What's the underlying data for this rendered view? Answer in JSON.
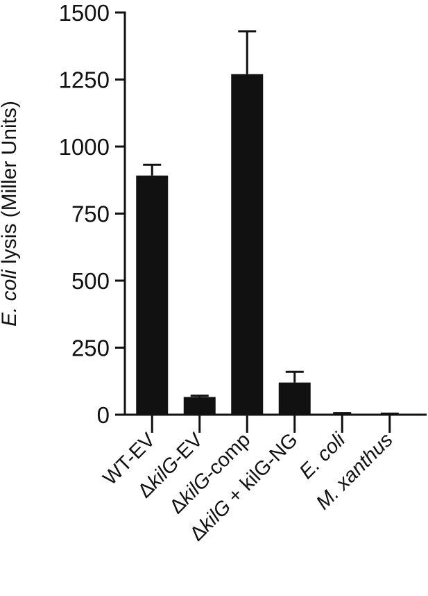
{
  "chart_data": {
    "type": "bar",
    "ylabel": "",
    "ylabel_parts": [
      {
        "text": "E. coli",
        "italic": true
      },
      {
        "text": " lysis (Miller Units)",
        "italic": false
      }
    ],
    "ylim": [
      0,
      1500
    ],
    "yticks": [
      0,
      250,
      500,
      750,
      1000,
      1250,
      1500
    ],
    "ytick_labels": [
      "0",
      "250",
      "500",
      "750",
      "1000",
      "1250",
      "1500"
    ],
    "categories": [
      "WT-EV",
      "ΔkilG-EV",
      "ΔkilG-comp",
      "ΔkilG + kilG-NG",
      "E. coli",
      "M. xanthus"
    ],
    "category_label_parts": [
      [
        {
          "text": "WT-EV",
          "italic": false
        }
      ],
      [
        {
          "text": "Δ",
          "italic": false
        },
        {
          "text": "kilG",
          "italic": true
        },
        {
          "text": "-EV",
          "italic": false
        }
      ],
      [
        {
          "text": "Δ",
          "italic": false
        },
        {
          "text": "kilG",
          "italic": true
        },
        {
          "text": "-comp",
          "italic": false
        }
      ],
      [
        {
          "text": "Δ",
          "italic": false
        },
        {
          "text": "kilG",
          "italic": true
        },
        {
          "text": " + kilG-NG",
          "italic": false
        }
      ],
      [
        {
          "text": "E. coli",
          "italic": true
        }
      ],
      [
        {
          "text": "M. xanthus",
          "italic": true
        }
      ]
    ],
    "values": [
      892,
      66,
      1270,
      120,
      3,
      2
    ],
    "errors": [
      40,
      5,
      160,
      40,
      3,
      2
    ],
    "grid": false,
    "legend": "none",
    "bar_color": "#111111"
  }
}
